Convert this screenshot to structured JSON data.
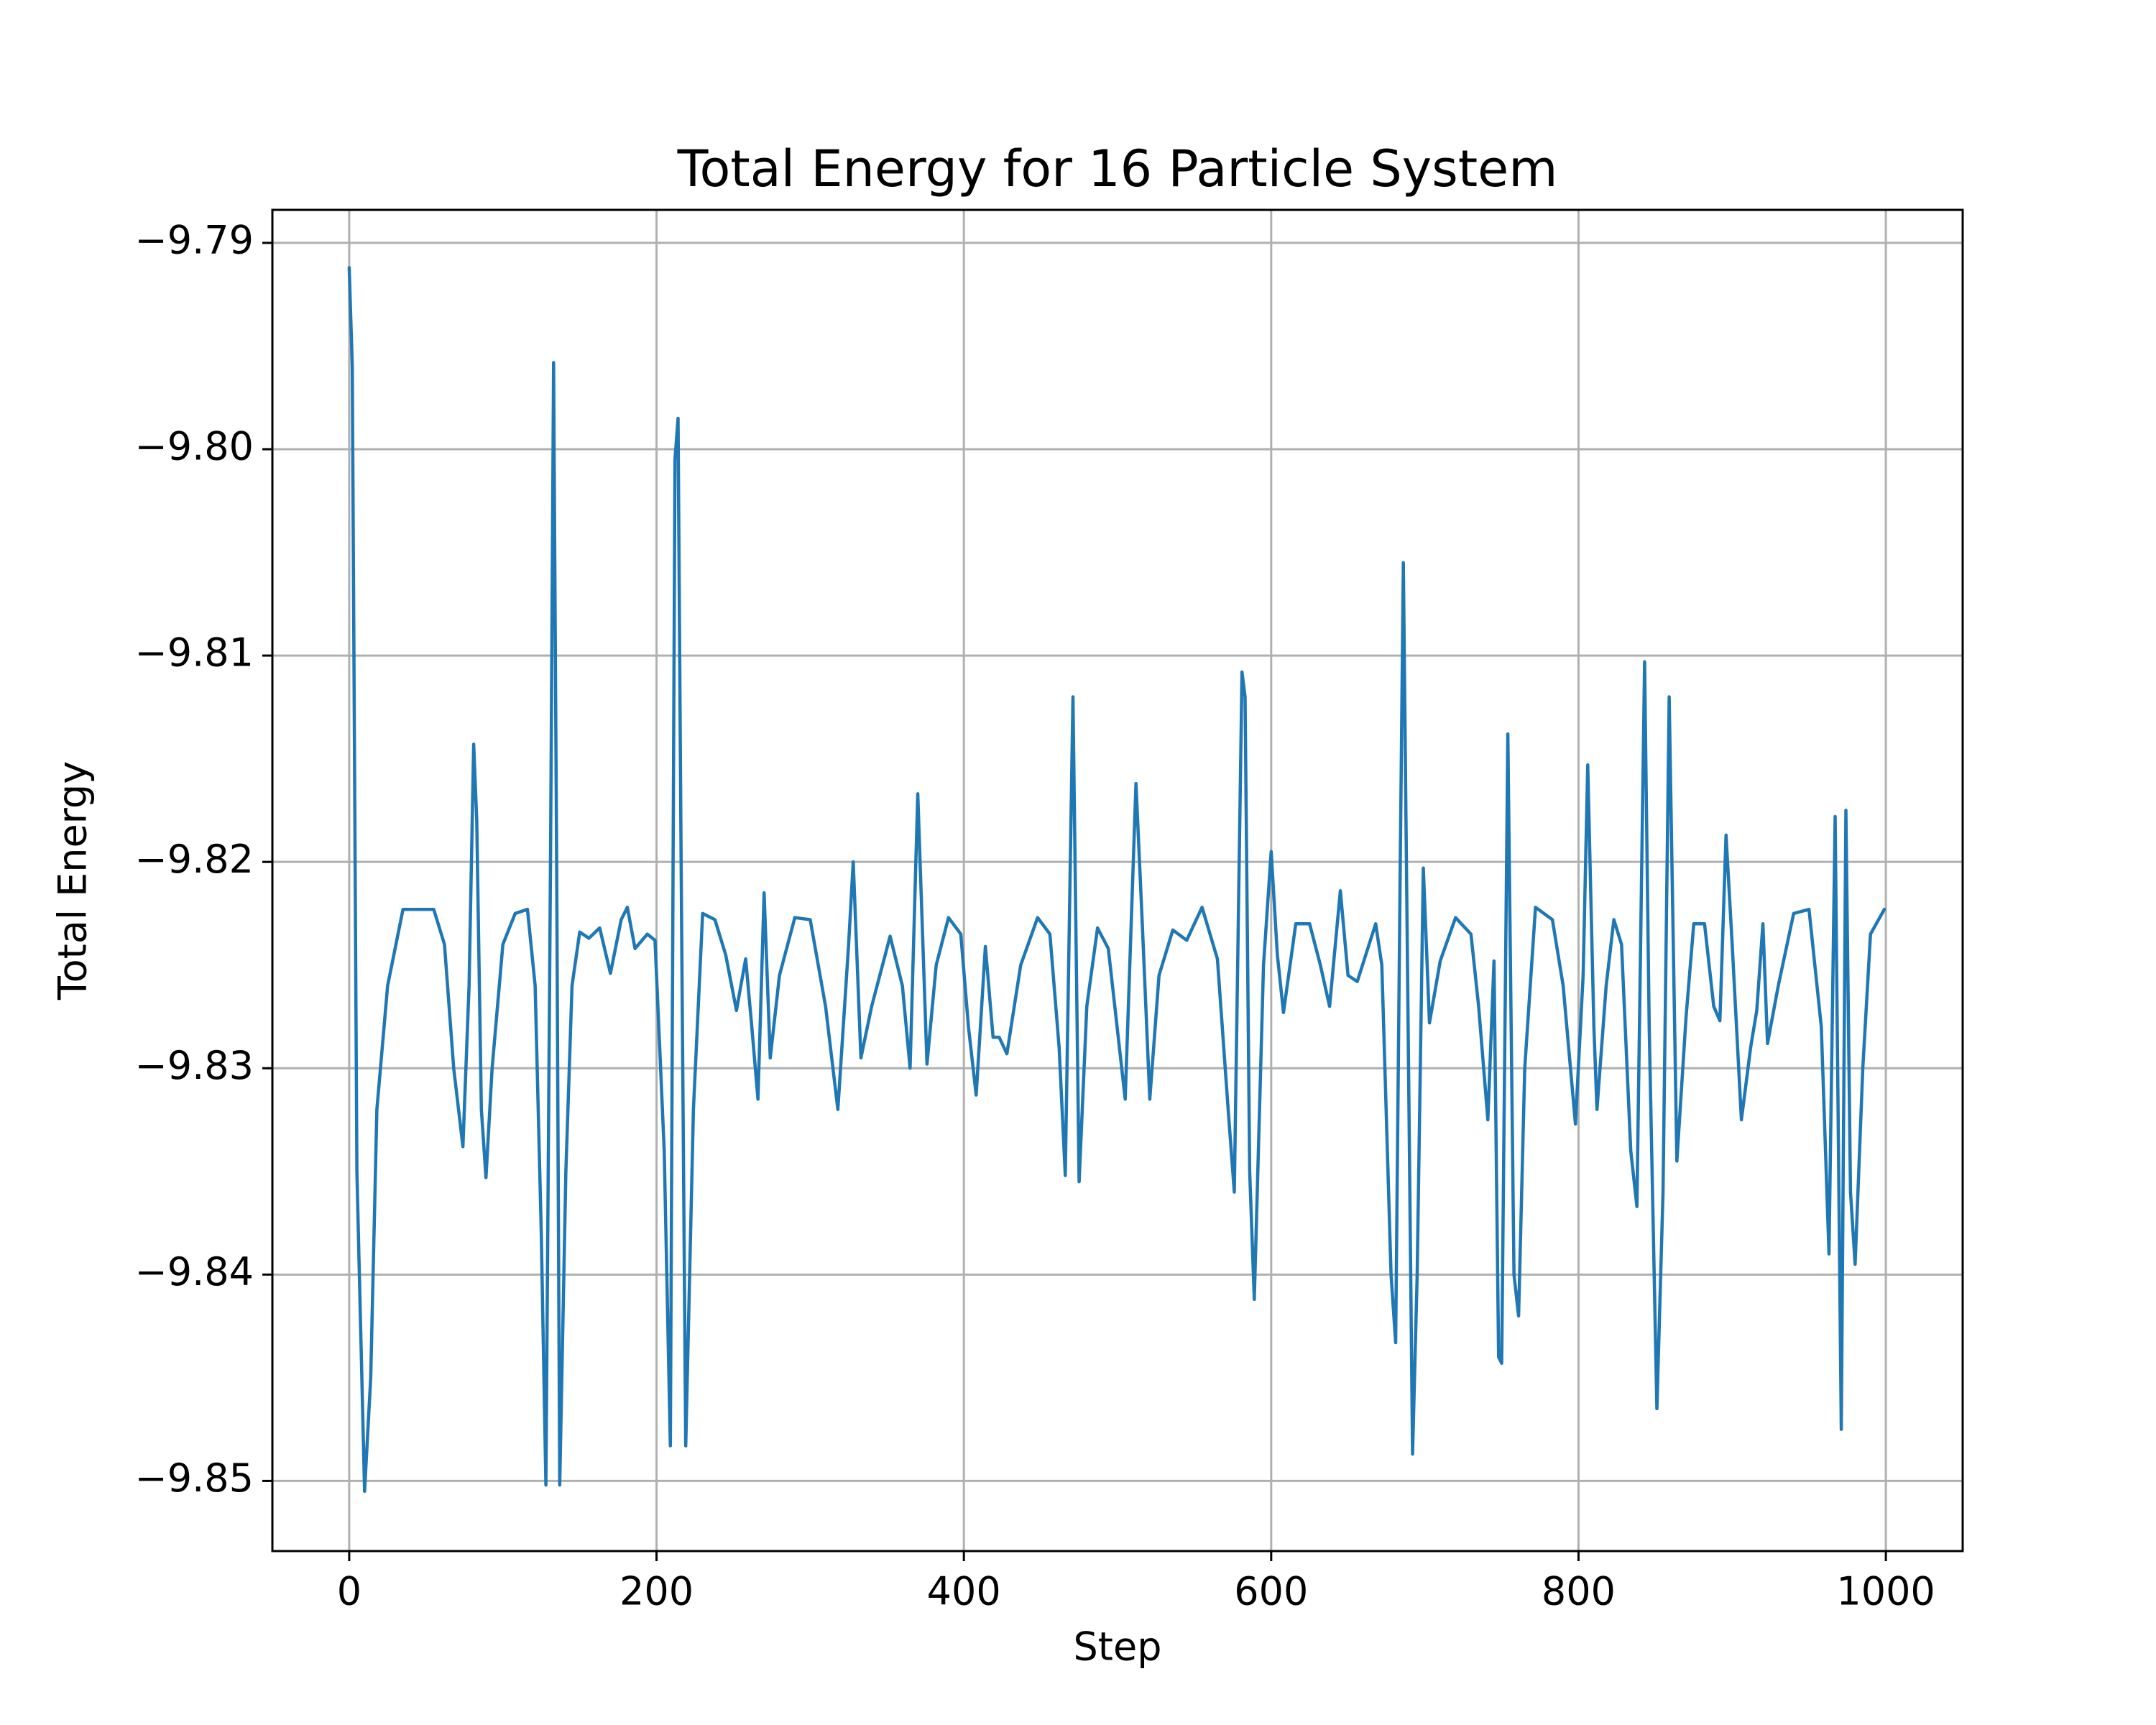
{
  "chart_data": {
    "type": "line",
    "title": "Total Energy for 16 Particle System",
    "xlabel": "Step",
    "ylabel": "Total Energy",
    "color": "#1f77b4",
    "grid": true,
    "xlim": [
      -50,
      1050
    ],
    "xticks": [
      0,
      200,
      400,
      600,
      800,
      1000
    ],
    "ylim": [
      -9.8534,
      -9.7884
    ],
    "yticks": [
      {
        "value": -9.85,
        "label": "−9.85"
      },
      {
        "value": -9.84,
        "label": "−9.84"
      },
      {
        "value": -9.83,
        "label": "−9.83"
      },
      {
        "value": -9.82,
        "label": "−9.82"
      },
      {
        "value": -9.81,
        "label": "−9.81"
      },
      {
        "value": -9.8,
        "label": "−9.80"
      },
      {
        "value": -9.79,
        "label": "−9.79"
      }
    ],
    "x": [
      0,
      2,
      5,
      10,
      14,
      18,
      25,
      35,
      55,
      62,
      68,
      74,
      78,
      81,
      83,
      86,
      89,
      93,
      100,
      108,
      116,
      121,
      125,
      128,
      131,
      133,
      135,
      137,
      141,
      145,
      150,
      156,
      163,
      170,
      177,
      181,
      186,
      194,
      199,
      205,
      209,
      212,
      214,
      216,
      219,
      224,
      230,
      238,
      245,
      252,
      258,
      262,
      266,
      270,
      274,
      280,
      290,
      300,
      310,
      318,
      325,
      328,
      333,
      340,
      352,
      360,
      365,
      370,
      376,
      382,
      390,
      398,
      403,
      408,
      414,
      419,
      423,
      428,
      437,
      448,
      456,
      462,
      466,
      471,
      475,
      480,
      487,
      494,
      505,
      512,
      516,
      521,
      527,
      536,
      545,
      555,
      565,
      572,
      576,
      581,
      583,
      586,
      589,
      595,
      600,
      604,
      608,
      616,
      625,
      632,
      638,
      645,
      650,
      656,
      668,
      672,
      678,
      681,
      684,
      686,
      688,
      692,
      695,
      699,
      703,
      710,
      720,
      730,
      735,
      741,
      745,
      748,
      750,
      754,
      758,
      761,
      765,
      772,
      783,
      790,
      798,
      803,
      806,
      810,
      812,
      818,
      823,
      828,
      834,
      838,
      843,
      846,
      851,
      855,
      859,
      864,
      870,
      875,
      882,
      888,
      892,
      896,
      900,
      906,
      912,
      916,
      920,
      923,
      930,
      940,
      950,
      958,
      963,
      967,
      971,
      974,
      977,
      980,
      985,
      990,
      999
    ],
    "values": [
      -9.7912,
      -9.796,
      -9.835,
      -9.8505,
      -9.845,
      -9.832,
      -9.826,
      -9.8223,
      -9.8223,
      -9.824,
      -9.83,
      -9.8338,
      -9.826,
      -9.8143,
      -9.818,
      -9.832,
      -9.8353,
      -9.83,
      -9.824,
      -9.8225,
      -9.8223,
      -9.826,
      -9.838,
      -9.8502,
      -9.82,
      -9.7958,
      -9.82,
      -9.8502,
      -9.835,
      -9.826,
      -9.8234,
      -9.8237,
      -9.8232,
      -9.8254,
      -9.8228,
      -9.8222,
      -9.8242,
      -9.8235,
      -9.8238,
      -9.834,
      -9.8483,
      -9.8005,
      -9.7985,
      -9.82,
      -9.8483,
      -9.832,
      -9.8225,
      -9.8228,
      -9.8245,
      -9.8272,
      -9.8247,
      -9.828,
      -9.8315,
      -9.8215,
      -9.8295,
      -9.8255,
      -9.8227,
      -9.8228,
      -9.827,
      -9.832,
      -9.824,
      -9.82,
      -9.8295,
      -9.827,
      -9.8236,
      -9.826,
      -9.83,
      -9.8167,
      -9.8298,
      -9.825,
      -9.8227,
      -9.8235,
      -9.828,
      -9.8313,
      -9.8241,
      -9.8285,
      -9.8285,
      -9.8293,
      -9.825,
      -9.8227,
      -9.8235,
      -9.829,
      -9.8352,
      -9.812,
      -9.8355,
      -9.827,
      -9.8232,
      -9.8242,
      -9.8315,
      -9.8162,
      -9.8228,
      -9.8315,
      -9.8255,
      -9.8233,
      -9.8238,
      -9.8222,
      -9.8247,
      -9.832,
      -9.836,
      -9.8108,
      -9.812,
      -9.835,
      -9.8412,
      -9.825,
      -9.8195,
      -9.8245,
      -9.8273,
      -9.823,
      -9.823,
      -9.825,
      -9.827,
      -9.8214,
      -9.8255,
      -9.8258,
      -9.823,
      -9.825,
      -9.84,
      -9.8433,
      -9.82,
      -9.8055,
      -9.82,
      -9.8487,
      -9.84,
      -9.8203,
      -9.8278,
      -9.8248,
      -9.8227,
      -9.8235,
      -9.827,
      -9.8325,
      -9.8248,
      -9.844,
      -9.8443,
      -9.8138,
      -9.84,
      -9.842,
      -9.83,
      -9.8222,
      -9.8228,
      -9.826,
      -9.8327,
      -9.8255,
      -9.8153,
      -9.828,
      -9.832,
      -9.826,
      -9.8228,
      -9.824,
      -9.834,
      -9.8367,
      -9.8103,
      -9.828,
      -9.8465,
      -9.836,
      -9.812,
      -9.8345,
      -9.8275,
      -9.823,
      -9.823,
      -9.827,
      -9.8277,
      -9.8187,
      -9.824,
      -9.8325,
      -9.829,
      -9.8272,
      -9.823,
      -9.8288,
      -9.826,
      -9.8225,
      -9.8223,
      -9.828,
      -9.839,
      -9.8178,
      -9.8475,
      -9.8175,
      -9.836,
      -9.8395,
      -9.83,
      -9.8235,
      -9.8223
    ]
  }
}
